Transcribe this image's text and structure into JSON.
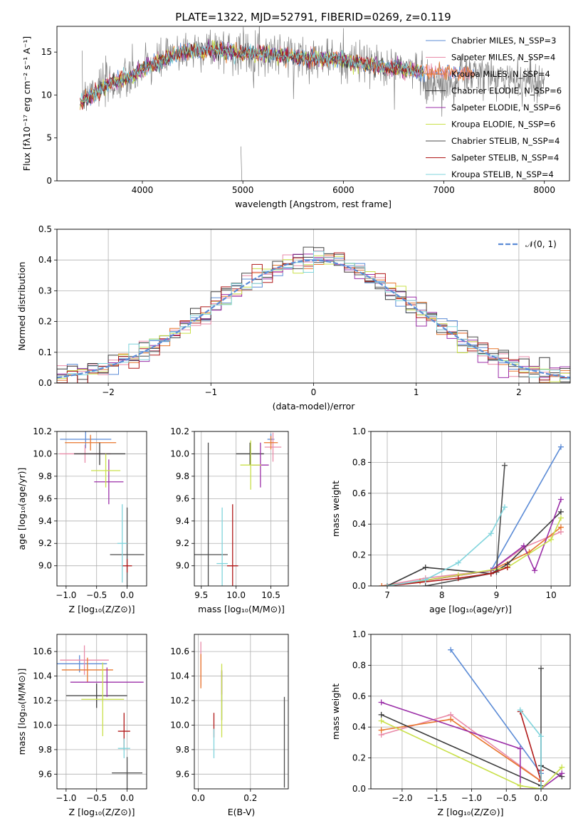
{
  "page_title": "PLATE=1322, MJD=52791, FIBERID=0269, z=0.119",
  "colors": {
    "Chabrier MILES": "#5b8bd6",
    "Salpeter MILES": "#e98aa8",
    "Kroupa MILES": "#e8762c",
    "Chabrier ELODIE": "#3a3a3a",
    "Salpeter ELODIE": "#9b2fa8",
    "Kroupa ELODIE": "#c9e04a",
    "Chabrier STELIB": "#4c4c4c",
    "Salpeter STELIB": "#b01818",
    "Kroupa STELIB": "#80d4dc",
    "gaussian": "#5b8bd6",
    "grid": "#b0b0b0",
    "data": "#808080"
  },
  "chart_data": [
    {
      "id": "spectrum",
      "type": "line",
      "title": "PLATE=1322, MJD=52791, FIBERID=0269, z=0.119",
      "xlabel": "wavelength [Angstrom, rest frame]",
      "ylabel": "Flux [fλ10⁻¹⁷ erg cm⁻² s⁻¹ A⁻¹]",
      "xlim": [
        3150,
        8250
      ],
      "ylim": [
        0,
        18
      ],
      "xticks": [
        4000,
        5000,
        6000,
        7000,
        8000
      ],
      "yticks": [
        0,
        5,
        10,
        15
      ],
      "legend_position": "top-right",
      "legend": [
        "Chabrier MILES, N_SSP=3",
        "Salpeter MILES, N_SSP=4",
        "Kroupa MILES, N_SSP=4",
        "Chabrier ELODIE, N_SSP=6",
        "Salpeter ELODIE, N_SSP=6",
        "Kroupa ELODIE, N_SSP=6",
        "Chabrier STELIB, N_SSP=4",
        "Salpeter STELIB, N_SSP=4",
        "Kroupa STELIB, N_SSP=4"
      ],
      "data_continuum": [
        [
          3400,
          10.5
        ],
        [
          3600,
          11
        ],
        [
          3800,
          11.5
        ],
        [
          3900,
          12
        ],
        [
          4000,
          13
        ],
        [
          4200,
          14
        ],
        [
          4400,
          15
        ],
        [
          4700,
          15.5
        ],
        [
          5000,
          15
        ],
        [
          5300,
          15
        ],
        [
          5600,
          14.5
        ],
        [
          6000,
          14
        ],
        [
          6300,
          13.5
        ],
        [
          6600,
          13
        ],
        [
          6900,
          12.5
        ],
        [
          7200,
          12.5
        ],
        [
          7600,
          12
        ],
        [
          8000,
          11.5
        ]
      ],
      "model_continuum": [
        [
          3380,
          9
        ],
        [
          3500,
          10
        ],
        [
          3700,
          11.5
        ],
        [
          3900,
          12.2
        ],
        [
          4000,
          13
        ],
        [
          4200,
          14
        ],
        [
          4400,
          15
        ],
        [
          4700,
          15.2
        ],
        [
          5000,
          14.8
        ],
        [
          5300,
          14.7
        ],
        [
          5600,
          14.4
        ],
        [
          6000,
          14
        ],
        [
          6300,
          13.4
        ],
        [
          6600,
          13
        ],
        [
          6800,
          12.7
        ],
        [
          7000,
          12.7
        ],
        [
          7300,
          12.5
        ]
      ]
    },
    {
      "id": "residuals",
      "type": "line",
      "xlabel": "(data-model)/error",
      "ylabel": "Normed distribution",
      "xlim": [
        -2.5,
        2.5
      ],
      "ylim": [
        0,
        0.5
      ],
      "xticks": [
        -2,
        -1,
        0,
        1,
        2
      ],
      "yticks": [
        0.0,
        0.1,
        0.2,
        0.3,
        0.4,
        0.5
      ],
      "legend": [
        "𝒩(0, 1)"
      ],
      "legend_position": "top-right",
      "gaussian": {
        "mu": 0,
        "sigma": 1
      }
    },
    {
      "id": "age-vs-Z",
      "type": "scatter",
      "xlabel": "Z [log₁₀(Z/Z⊙)]",
      "ylabel": "age  [log₁₀(age/yr)]",
      "xlim": [
        -1.15,
        0.32
      ],
      "ylim": [
        8.82,
        10.2
      ],
      "xticks": [
        -1.0,
        -0.5,
        0.0
      ],
      "yticks": [
        9.0,
        9.2,
        9.4,
        9.6,
        9.8,
        10.0,
        10.2
      ],
      "points": [
        {
          "model": "Chabrier MILES",
          "x": -0.68,
          "y": 10.13,
          "xe": 0.42,
          "ye": 0.08
        },
        {
          "model": "Salpeter MILES",
          "x": -0.69,
          "y": 10.0,
          "xe": 0.42,
          "ye": 0.08
        },
        {
          "model": "Kroupa MILES",
          "x": -0.6,
          "y": 10.1,
          "xe": 0.42,
          "ye": 0.07
        },
        {
          "model": "Chabrier ELODIE",
          "x": -0.45,
          "y": 10.0,
          "xe": 0.42,
          "ye": 0.1
        },
        {
          "model": "Salpeter ELODIE",
          "x": -0.3,
          "y": 9.75,
          "xe": 0.24,
          "ye": 0.2
        },
        {
          "model": "Kroupa ELODIE",
          "x": -0.35,
          "y": 9.85,
          "xe": 0.24,
          "ye": 0.15
        },
        {
          "model": "Chabrier STELIB",
          "x": 0.0,
          "y": 9.1,
          "xe": 0.28,
          "ye": 0.42
        },
        {
          "model": "Salpeter STELIB",
          "x": 0.0,
          "y": 9.0,
          "xe": 0.08,
          "ye": 0.06
        },
        {
          "model": "Kroupa STELIB",
          "x": -0.08,
          "y": 9.2,
          "xe": 0.08,
          "ye": 0.35
        }
      ]
    },
    {
      "id": "age-vs-mass",
      "type": "scatter",
      "xlabel": "mass [log₁₀(M/M⊙)]",
      "ylabel": "",
      "xlim": [
        9.4,
        10.75
      ],
      "ylim": [
        8.82,
        10.2
      ],
      "xticks": [
        9.5,
        10.0,
        10.5
      ],
      "yticks": [
        9.0,
        9.2,
        9.4,
        9.6,
        9.8,
        10.0,
        10.2
      ],
      "points": [
        {
          "model": "Chabrier MILES",
          "x": 10.5,
          "y": 10.13,
          "xe": 0.05,
          "ye": 0.05
        },
        {
          "model": "Salpeter MILES",
          "x": 10.53,
          "y": 10.06,
          "xe": 0.12,
          "ye": 0.13
        },
        {
          "model": "Kroupa MILES",
          "x": 10.5,
          "y": 10.1,
          "xe": 0.1,
          "ye": 0.06
        },
        {
          "model": "Chabrier ELODIE",
          "x": 10.2,
          "y": 10.0,
          "xe": 0.2,
          "ye": 0.1
        },
        {
          "model": "Salpeter ELODIE",
          "x": 10.35,
          "y": 9.9,
          "xe": 0.12,
          "ye": 0.2
        },
        {
          "model": "Kroupa ELODIE",
          "x": 10.21,
          "y": 9.9,
          "xe": 0.15,
          "ye": 0.22
        },
        {
          "model": "Chabrier STELIB",
          "x": 9.6,
          "y": 9.1,
          "xe": 0.28,
          "ye": 1.0
        },
        {
          "model": "Salpeter STELIB",
          "x": 9.95,
          "y": 9.0,
          "xe": 0.08,
          "ye": 0.55
        },
        {
          "model": "Kroupa STELIB",
          "x": 9.8,
          "y": 9.02,
          "xe": 0.08,
          "ye": 0.5
        }
      ]
    },
    {
      "id": "mass-weight-vs-age",
      "type": "line",
      "xlabel": "age  [log₁₀(age/yr)]",
      "ylabel": "mass weight",
      "xlim": [
        6.7,
        10.35
      ],
      "ylim": [
        0,
        1.0
      ],
      "xticks": [
        7,
        8,
        9,
        10
      ],
      "yticks": [
        0.0,
        0.2,
        0.4,
        0.6,
        0.8,
        1.0
      ],
      "series": [
        {
          "name": "Chabrier MILES",
          "x": [
            7.0,
            8.9,
            10.18
          ],
          "y": [
            0.0,
            0.1,
            0.9
          ]
        },
        {
          "name": "Salpeter MILES",
          "x": [
            6.9,
            7.7,
            8.9,
            9.5,
            10.18
          ],
          "y": [
            0.0,
            0.05,
            0.1,
            0.25,
            0.35
          ]
        },
        {
          "name": "Kroupa MILES",
          "x": [
            6.9,
            7.6,
            8.9,
            9.6,
            10.18
          ],
          "y": [
            0.0,
            0.03,
            0.1,
            0.22,
            0.38
          ]
        },
        {
          "name": "Chabrier ELODIE",
          "x": [
            7.0,
            7.7,
            8.9,
            9.2,
            10.18
          ],
          "y": [
            0.0,
            0.12,
            0.08,
            0.14,
            0.48
          ]
        },
        {
          "name": "Salpeter ELODIE",
          "x": [
            7.0,
            8.9,
            9.5,
            9.7,
            10.18
          ],
          "y": [
            0.0,
            0.1,
            0.26,
            0.1,
            0.56
          ]
        },
        {
          "name": "Kroupa ELODIE",
          "x": [
            7.0,
            8.3,
            9.2,
            10.0,
            10.18
          ],
          "y": [
            0.0,
            0.07,
            0.12,
            0.3,
            0.44
          ]
        },
        {
          "name": "Chabrier STELIB",
          "x": [
            7.7,
            8.9,
            9.0,
            9.15
          ],
          "y": [
            0.0,
            0.08,
            0.09,
            0.78
          ]
        },
        {
          "name": "Salpeter STELIB",
          "x": [
            7.0,
            8.3,
            8.9,
            9.2
          ],
          "y": [
            0.0,
            0.05,
            0.08,
            0.12
          ]
        },
        {
          "name": "Kroupa STELIB",
          "x": [
            7.0,
            7.7,
            8.3,
            8.9,
            9.15
          ],
          "y": [
            0.0,
            0.04,
            0.15,
            0.34,
            0.51
          ]
        }
      ]
    },
    {
      "id": "mass-vs-Z",
      "type": "scatter",
      "xlabel": "Z [log₁₀(Z/Z⊙)]",
      "ylabel": "mass [log₁₀(M/M⊙)]",
      "xlim": [
        -1.15,
        0.32
      ],
      "ylim": [
        9.48,
        10.74
      ],
      "xticks": [
        -1.0,
        -0.5,
        0.0
      ],
      "yticks": [
        9.6,
        9.8,
        10.0,
        10.2,
        10.4,
        10.6
      ],
      "points": [
        {
          "model": "Chabrier MILES",
          "x": -0.78,
          "y": 10.5,
          "xe": 0.45,
          "ye": 0.07
        },
        {
          "model": "Salpeter MILES",
          "x": -0.7,
          "y": 10.53,
          "xe": 0.4,
          "ye": 0.12
        },
        {
          "model": "Kroupa MILES",
          "x": -0.65,
          "y": 10.45,
          "xe": 0.42,
          "ye": 0.1
        },
        {
          "model": "Chabrier ELODIE",
          "x": -0.5,
          "y": 10.24,
          "xe": 0.5,
          "ye": 0.1
        },
        {
          "model": "Salpeter ELODIE",
          "x": -0.33,
          "y": 10.35,
          "xe": 0.6,
          "ye": 0.12
        },
        {
          "model": "Kroupa ELODIE",
          "x": -0.4,
          "y": 10.21,
          "xe": 0.35,
          "ye": 0.3
        },
        {
          "model": "Chabrier STELIB",
          "x": 0.0,
          "y": 9.61,
          "xe": 0.25,
          "ye": 0.13
        },
        {
          "model": "Salpeter STELIB",
          "x": -0.05,
          "y": 9.95,
          "xe": 0.1,
          "ye": 0.15
        },
        {
          "model": "Kroupa STELIB",
          "x": -0.05,
          "y": 9.81,
          "xe": 0.1,
          "ye": 0.08
        }
      ]
    },
    {
      "id": "mass-vs-ebv",
      "type": "scatter",
      "xlabel": "E(B-V)",
      "ylabel": "",
      "xlim": [
        -0.015,
        0.345
      ],
      "ylim": [
        9.48,
        10.74
      ],
      "xticks": [
        0.0,
        0.2
      ],
      "yticks": [
        9.6,
        9.8,
        10.0,
        10.2,
        10.4,
        10.6
      ],
      "points": [
        {
          "model": "Salpeter MILES",
          "x": 0.01,
          "y": 10.5,
          "xe": 0.0,
          "ye": 0.18
        },
        {
          "model": "Kroupa MILES",
          "x": 0.01,
          "y": 10.44,
          "xe": 0.0,
          "ye": 0.14
        },
        {
          "model": "Chabrier ELODIE",
          "x": 0.09,
          "y": 10.24,
          "xe": 0.0,
          "ye": 0.2
        },
        {
          "model": "Salpeter ELODIE",
          "x": 0.09,
          "y": 10.35,
          "xe": 0.0,
          "ye": 0.1
        },
        {
          "model": "Kroupa ELODIE",
          "x": 0.09,
          "y": 10.2,
          "xe": 0.0,
          "ye": 0.3
        },
        {
          "model": "Chabrier STELIB",
          "x": 0.33,
          "y": 9.86,
          "xe": 0.0,
          "ye": 0.37
        },
        {
          "model": "Salpeter STELIB",
          "x": 0.06,
          "y": 10.0,
          "xe": 0.0,
          "ye": 0.1
        },
        {
          "model": "Kroupa STELIB",
          "x": 0.06,
          "y": 9.85,
          "xe": 0.0,
          "ye": 0.12
        }
      ]
    },
    {
      "id": "mass-weight-vs-Z",
      "type": "line",
      "xlabel": "Z [log₁₀(Z/Z⊙)]",
      "ylabel": "mass weight",
      "xlim": [
        -2.45,
        0.42
      ],
      "ylim": [
        0,
        1.0
      ],
      "xticks": [
        -2.0,
        -1.5,
        -1.0,
        -0.5,
        0.0
      ],
      "yticks": [
        0.0,
        0.2,
        0.4,
        0.6,
        0.8,
        1.0
      ],
      "series": [
        {
          "name": "Chabrier MILES",
          "x": [
            -1.3,
            0.0
          ],
          "y": [
            0.9,
            0.1
          ]
        },
        {
          "name": "Salpeter MILES",
          "x": [
            -2.3,
            -1.3,
            0.0
          ],
          "y": [
            0.35,
            0.48,
            0.05
          ]
        },
        {
          "name": "Kroupa MILES",
          "x": [
            -2.3,
            -1.3,
            0.0
          ],
          "y": [
            0.38,
            0.45,
            0.05
          ]
        },
        {
          "name": "Chabrier ELODIE",
          "x": [
            -2.3,
            0.0,
            0.0,
            0.3
          ],
          "y": [
            0.48,
            0.02,
            0.15,
            0.08
          ]
        },
        {
          "name": "Salpeter ELODIE",
          "x": [
            -2.3,
            -0.3,
            -0.3,
            0.0,
            0.3
          ],
          "y": [
            0.56,
            0.26,
            0.0,
            0.0,
            0.1
          ]
        },
        {
          "name": "Kroupa ELODIE",
          "x": [
            -2.3,
            -0.3,
            0.0,
            0.3
          ],
          "y": [
            0.44,
            0.02,
            0.0,
            0.14
          ]
        },
        {
          "name": "Chabrier STELIB",
          "x": [
            0.0,
            0.0
          ],
          "y": [
            0.0,
            0.78
          ]
        },
        {
          "name": "Salpeter STELIB",
          "x": [
            -0.3,
            0.0,
            0.0
          ],
          "y": [
            0.5,
            0.05,
            0.12
          ]
        },
        {
          "name": "Kroupa STELIB",
          "x": [
            -0.3,
            0.0,
            0.0
          ],
          "y": [
            0.51,
            0.34,
            0.0
          ]
        }
      ]
    }
  ]
}
